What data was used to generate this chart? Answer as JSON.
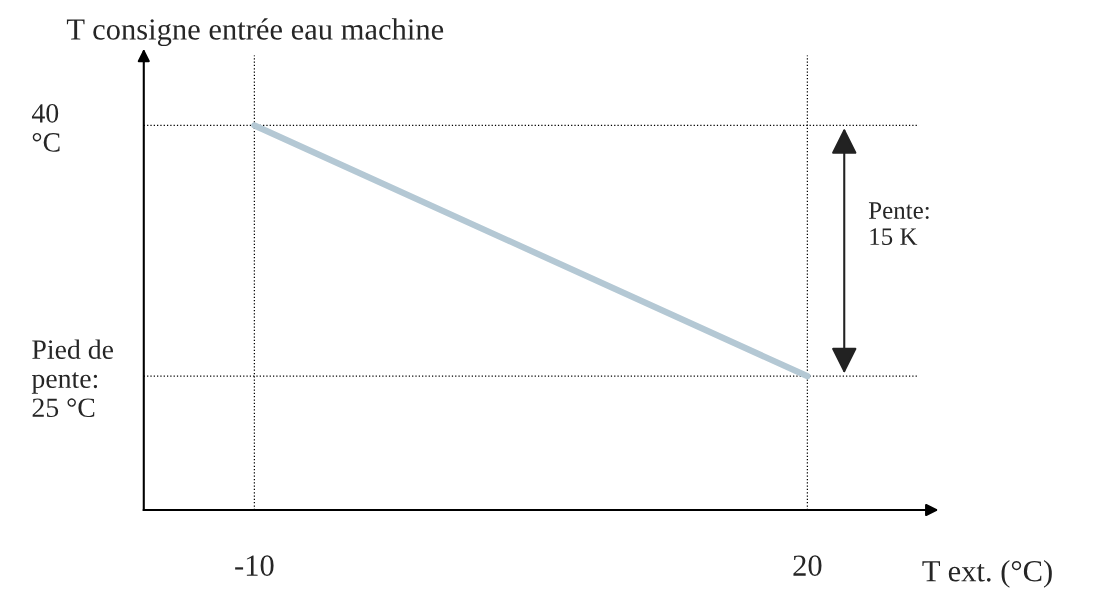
{
  "chart_data": {
    "type": "line",
    "ylabel": "T consigne entrée eau machine",
    "xlabel": "T ext. (°C)",
    "x": [
      -10,
      20
    ],
    "series": [
      {
        "color": "#b4c8d4",
        "values": [
          40,
          25
        ]
      }
    ],
    "xlim": [
      -16,
      26
    ],
    "ylim": [
      17,
      44.2
    ],
    "xticks": [
      -10,
      20
    ],
    "yticks": [
      {
        "value": 40,
        "label": "40\n°C"
      },
      {
        "value": 25,
        "label": "Pied de\npente:\n25 °C"
      }
    ],
    "ref_lines": [
      {
        "axis": "y",
        "value": 40,
        "line_style": "dotted",
        "color": "#000000"
      },
      {
        "axis": "y",
        "value": 25,
        "line_style": "dotted",
        "color": "#000000"
      },
      {
        "axis": "x",
        "value": -10,
        "line_style": "dotted",
        "color": "#000000"
      },
      {
        "axis": "x",
        "value": 20,
        "line_style": "dotted",
        "color": "#000000"
      }
    ],
    "annotations": [
      "Pente:\n15 K"
    ],
    "grid": false,
    "legend": false,
    "marker": "none",
    "line_style": "solid"
  }
}
